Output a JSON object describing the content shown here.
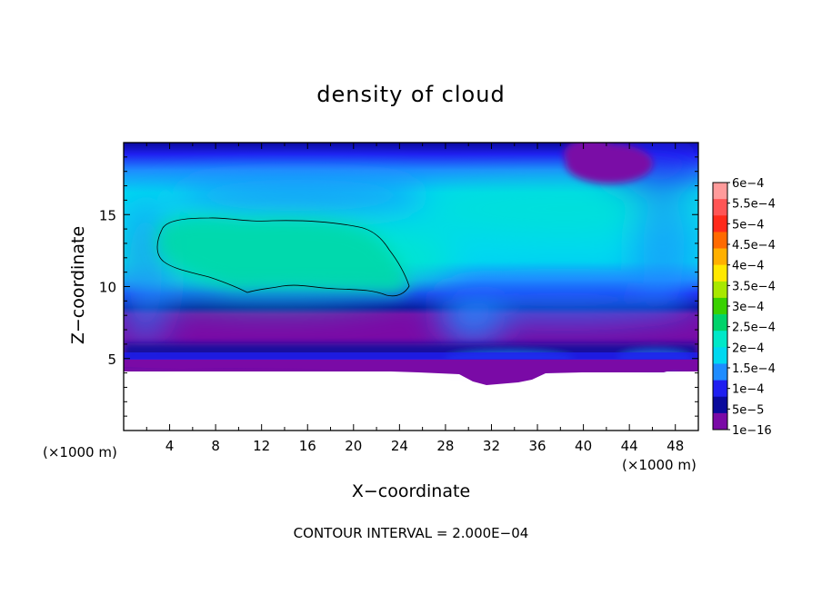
{
  "chart_data": {
    "type": "heatmap",
    "title": "density of cloud",
    "xlabel": "X−coordinate",
    "ylabel": "Z−coordinate",
    "x_unit_left": "(×1000 m)",
    "x_unit_right": "(×1000 m)",
    "footer": "CONTOUR INTERVAL = 2.000E−04",
    "xlim": [
      0,
      50
    ],
    "ylim": [
      0,
      20
    ],
    "x_ticks": [
      4,
      8,
      12,
      16,
      20,
      24,
      28,
      32,
      36,
      40,
      44,
      48
    ],
    "x_tick_labels": [
      "4",
      "8",
      "12",
      "16",
      "20",
      "24",
      "28",
      "32",
      "36",
      "40",
      "44",
      "48"
    ],
    "y_ticks": [
      5,
      10,
      15
    ],
    "y_tick_labels": [
      "5",
      "10",
      "15"
    ],
    "colorbar": {
      "labels": [
        "6e−4",
        "5.5e−4",
        "5e−4",
        "4.5e−4",
        "4e−4",
        "3.5e−4",
        "3e−4",
        "2.5e−4",
        "2e−4",
        "1.5e−4",
        "1e−4",
        "5e−5",
        "1e−16"
      ],
      "colors": [
        "#ff9b9b",
        "#ff5555",
        "#ff2a1a",
        "#ff6a00",
        "#ffb000",
        "#ffe800",
        "#a8e800",
        "#39d100",
        "#00d36a",
        "#00e8c8",
        "#00d8f0",
        "#1e8cff",
        "#1f1ff0",
        "#0a0a9c",
        "#7a0aa6"
      ]
    },
    "contour_level": "2.000E−04",
    "features": [
      {
        "name": "max-cloud-region",
        "x": [
          3.2,
          25
        ],
        "z": [
          9.3,
          14.8
        ],
        "level": "2e−4"
      },
      {
        "name": "low-density-top-right",
        "x": [
          38,
          46
        ],
        "z": [
          17.8,
          20
        ],
        "level": "1e−16"
      },
      {
        "name": "cloud-base",
        "z": 4.3
      }
    ]
  }
}
